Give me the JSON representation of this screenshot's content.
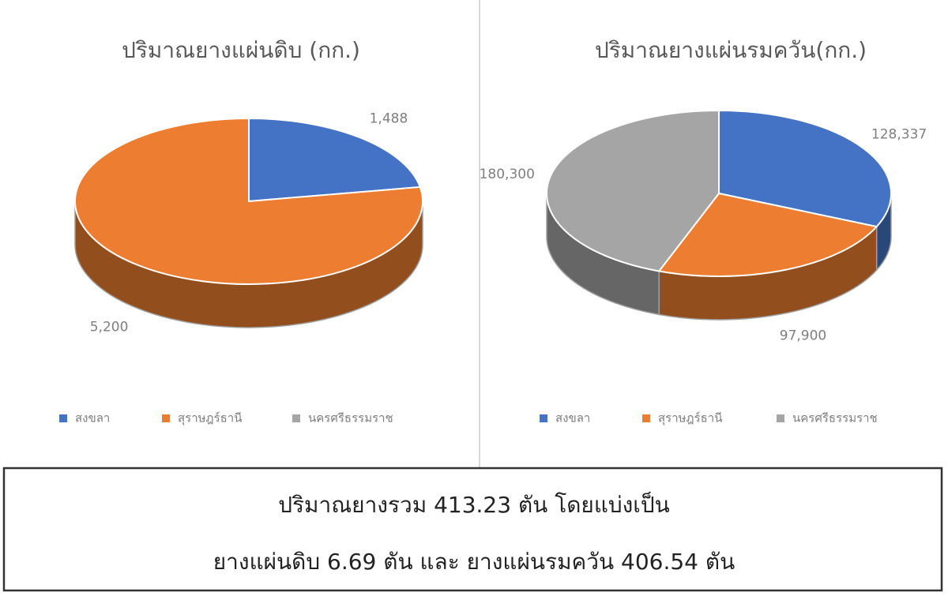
{
  "chart_data": [
    {
      "type": "pie3d",
      "title": "ปริมาณยางแผ่นดิบ (กก.)",
      "categories": [
        "สงขลา",
        "สุราษฎร์ธานี",
        "นครศรีธรรมราช"
      ],
      "values": [
        1488,
        5200,
        null
      ],
      "value_labels": [
        "1,488",
        "5,200",
        null
      ],
      "colors": [
        "#4472c4",
        "#ed7d31",
        "#a5a5a5"
      ],
      "legend": "bottom"
    },
    {
      "type": "pie3d",
      "title": "ปริมาณยางแผ่นรมควัน(กก.)",
      "categories": [
        "สงขลา",
        "สุราษฎร์ธานี",
        "นครศรีธรรมราช"
      ],
      "values": [
        128337,
        97900,
        180300
      ],
      "value_labels": [
        "128,337",
        "97,900",
        "180,300"
      ],
      "colors": [
        "#4472c4",
        "#ed7d31",
        "#a5a5a5"
      ],
      "legend": "bottom"
    }
  ],
  "summary": {
    "lines": [
      "ปริมาณยางรวม 413.23 ตัน โดยแบ่งเป็น",
      "ยางแผ่นดิบ 6.69 ตัน และ ยางแผ่นรมควัน 406.54 ตัน"
    ]
  }
}
